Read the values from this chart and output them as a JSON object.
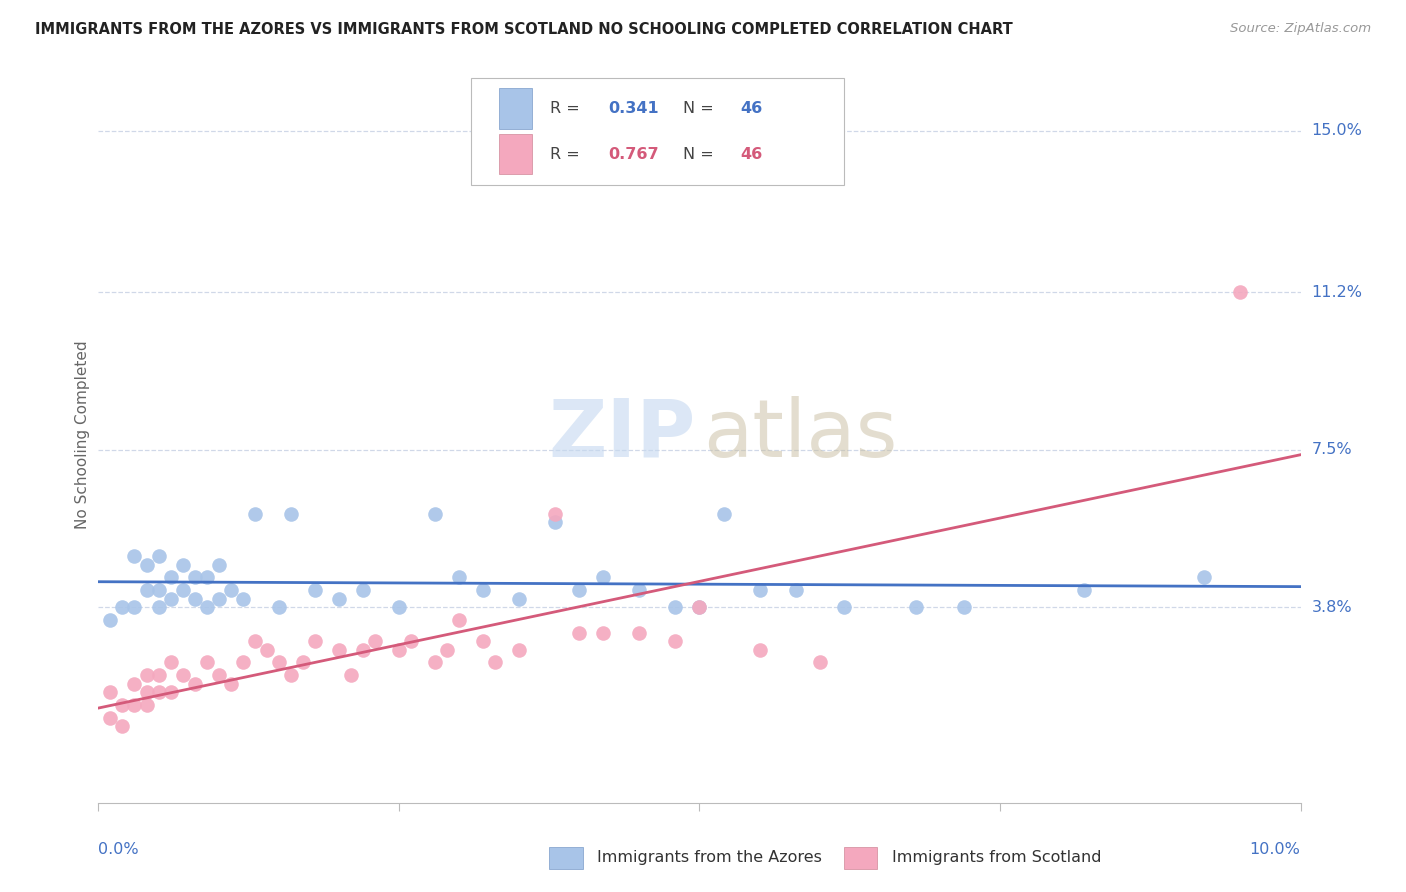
{
  "title": "IMMIGRANTS FROM THE AZORES VS IMMIGRANTS FROM SCOTLAND NO SCHOOLING COMPLETED CORRELATION CHART",
  "source": "Source: ZipAtlas.com",
  "ylabel": "No Schooling Completed",
  "ytick_labels": [
    "15.0%",
    "11.2%",
    "7.5%",
    "3.8%"
  ],
  "ytick_values": [
    0.15,
    0.112,
    0.075,
    0.038
  ],
  "xlim": [
    0.0,
    0.1
  ],
  "ylim": [
    -0.008,
    0.165
  ],
  "color_azores": "#a8c4e8",
  "color_scotland": "#f4a8be",
  "color_line_azores": "#4472c4",
  "color_line_scotland": "#d45a7a",
  "color_text_blue": "#4472c4",
  "color_text_pink": "#d45a7a",
  "color_grid": "#d0d8e8",
  "azores_x": [
    0.001,
    0.002,
    0.003,
    0.003,
    0.004,
    0.004,
    0.005,
    0.005,
    0.005,
    0.006,
    0.006,
    0.007,
    0.007,
    0.008,
    0.008,
    0.009,
    0.009,
    0.01,
    0.01,
    0.011,
    0.012,
    0.013,
    0.015,
    0.016,
    0.018,
    0.02,
    0.022,
    0.025,
    0.028,
    0.03,
    0.032,
    0.035,
    0.038,
    0.04,
    0.042,
    0.045,
    0.048,
    0.05,
    0.052,
    0.055,
    0.058,
    0.062,
    0.068,
    0.072,
    0.082,
    0.092
  ],
  "azores_y": [
    0.035,
    0.038,
    0.038,
    0.05,
    0.042,
    0.048,
    0.042,
    0.038,
    0.05,
    0.04,
    0.045,
    0.042,
    0.048,
    0.04,
    0.045,
    0.038,
    0.045,
    0.04,
    0.048,
    0.042,
    0.04,
    0.06,
    0.038,
    0.06,
    0.042,
    0.04,
    0.042,
    0.038,
    0.06,
    0.045,
    0.042,
    0.04,
    0.058,
    0.042,
    0.045,
    0.042,
    0.038,
    0.038,
    0.06,
    0.042,
    0.042,
    0.038,
    0.038,
    0.038,
    0.042,
    0.045
  ],
  "scotland_x": [
    0.001,
    0.001,
    0.002,
    0.002,
    0.003,
    0.003,
    0.004,
    0.004,
    0.004,
    0.005,
    0.005,
    0.006,
    0.006,
    0.007,
    0.008,
    0.009,
    0.01,
    0.011,
    0.012,
    0.013,
    0.014,
    0.015,
    0.016,
    0.017,
    0.018,
    0.02,
    0.021,
    0.022,
    0.023,
    0.025,
    0.026,
    0.028,
    0.029,
    0.03,
    0.032,
    0.033,
    0.035,
    0.038,
    0.04,
    0.042,
    0.045,
    0.048,
    0.05,
    0.055,
    0.06,
    0.095
  ],
  "scotland_y": [
    0.012,
    0.018,
    0.01,
    0.015,
    0.015,
    0.02,
    0.015,
    0.018,
    0.022,
    0.018,
    0.022,
    0.018,
    0.025,
    0.022,
    0.02,
    0.025,
    0.022,
    0.02,
    0.025,
    0.03,
    0.028,
    0.025,
    0.022,
    0.025,
    0.03,
    0.028,
    0.022,
    0.028,
    0.03,
    0.028,
    0.03,
    0.025,
    0.028,
    0.035,
    0.03,
    0.025,
    0.028,
    0.06,
    0.032,
    0.032,
    0.032,
    0.03,
    0.038,
    0.028,
    0.025,
    0.112
  ]
}
